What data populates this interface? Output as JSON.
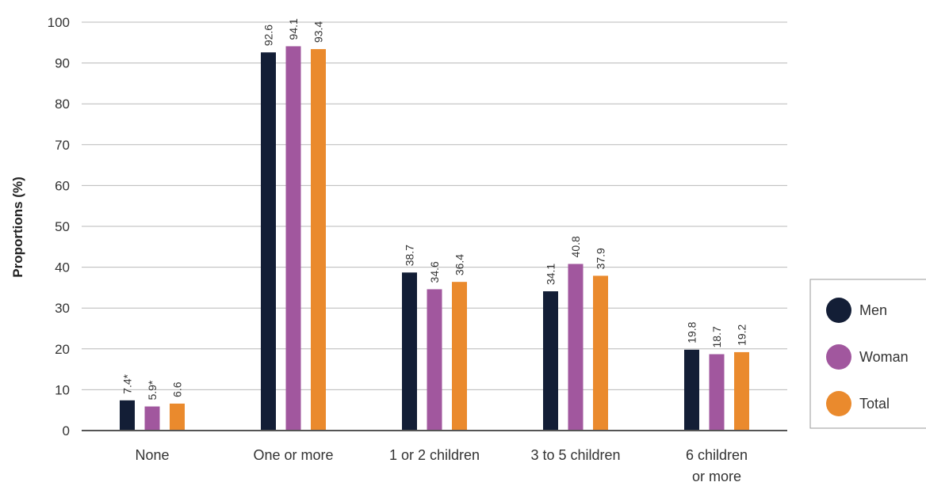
{
  "chart_data": {
    "type": "bar",
    "categories": [
      [
        "None"
      ],
      [
        "One or more"
      ],
      [
        "1 or 2 children"
      ],
      [
        "3 to 5 children"
      ],
      [
        "6 children",
        "or more"
      ]
    ],
    "series": [
      {
        "name": "Men",
        "color": "#131e36",
        "values": [
          7.4,
          92.6,
          38.7,
          34.1,
          19.8
        ],
        "labels": [
          "7.4*",
          "92.6",
          "38.7",
          "34.1",
          "19.8"
        ]
      },
      {
        "name": "Woman",
        "color": "#a1579e",
        "values": [
          5.9,
          94.1,
          34.6,
          40.8,
          18.7
        ],
        "labels": [
          "5.9*",
          "94.1",
          "34.6",
          "40.8",
          "18.7"
        ]
      },
      {
        "name": "Total",
        "color": "#ea8a2d",
        "values": [
          6.6,
          93.4,
          36.4,
          37.9,
          19.2
        ],
        "labels": [
          "6.6",
          "93.4",
          "36.4",
          "37.9",
          "19.2"
        ]
      }
    ],
    "ylabel": "Proportions (%)",
    "ylim": [
      0,
      100
    ],
    "yticks": [
      0,
      10,
      20,
      30,
      40,
      50,
      60,
      70,
      80,
      90,
      100
    ],
    "grid": true,
    "legend_position": "right"
  }
}
